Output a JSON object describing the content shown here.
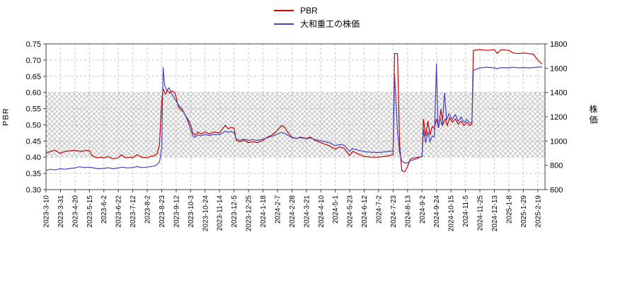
{
  "legend": [
    {
      "label": "PBR",
      "color": "#cc0000"
    },
    {
      "label": "大和重工の株価",
      "color": "#4444c8"
    }
  ],
  "axes": {
    "left": {
      "label": "PBR",
      "ticks": [
        0.3,
        0.35,
        0.4,
        0.45,
        0.5,
        0.55,
        0.6,
        0.65,
        0.7,
        0.75
      ]
    },
    "right": {
      "label": "株価",
      "ticks": [
        600,
        800,
        1000,
        1200,
        1400,
        1600,
        1800
      ]
    }
  },
  "colors": {
    "grid": "#c8c8c8",
    "hatch": "#c0c0c0",
    "frame": "#444444",
    "pbr_line": "#cc0000",
    "price_line": "#4444c8"
  },
  "chart_data": {
    "type": "line",
    "title": "",
    "grid": true,
    "legend_position": "top-center",
    "x_tick_labels": [
      "2023-3-10",
      "2023-3-31",
      "2023-4-20",
      "2023-5-15",
      "2023-6-2",
      "2023-6-22",
      "2023-7-12",
      "2023-8-2",
      "2023-8-23",
      "2023-9-12",
      "2023-10-3",
      "2023-10-24",
      "2023-11-14",
      "2023-12-5",
      "2023-12-25",
      "2024-1-18",
      "2024-2-7",
      "2024-2-28",
      "2024-3-21",
      "2024-4-10",
      "2024-5-1",
      "2024-5-23",
      "2024-6-12",
      "2024-7-2",
      "2024-7-23",
      "2024-8-13",
      "2024-9-2",
      "2024-9-24",
      "2024-10-15",
      "2024-11-5",
      "2024-11-25",
      "2024-12-13",
      "2025-1-8",
      "2025-1-29",
      "2025-2-19"
    ],
    "x_range": [
      0,
      34.5
    ],
    "left_ylim": [
      0.3,
      0.75
    ],
    "right_ylim": [
      600,
      1800
    ],
    "band_left_axis": [
      0.4,
      0.6
    ],
    "series": [
      {
        "name": "PBR",
        "key": "pbr-line",
        "axis": "left",
        "color": "#cc0000",
        "points": [
          [
            0,
            0.412
          ],
          [
            0.3,
            0.418
          ],
          [
            0.6,
            0.421
          ],
          [
            1,
            0.412
          ],
          [
            1.3,
            0.418
          ],
          [
            1.7,
            0.42
          ],
          [
            2,
            0.421
          ],
          [
            2.4,
            0.418
          ],
          [
            2.8,
            0.421
          ],
          [
            3,
            0.42
          ],
          [
            3.2,
            0.405
          ],
          [
            3.5,
            0.398
          ],
          [
            3.8,
            0.4
          ],
          [
            4,
            0.398
          ],
          [
            4.3,
            0.402
          ],
          [
            4.6,
            0.395
          ],
          [
            5,
            0.398
          ],
          [
            5.2,
            0.408
          ],
          [
            5.5,
            0.398
          ],
          [
            5.8,
            0.4
          ],
          [
            6,
            0.398
          ],
          [
            6.3,
            0.408
          ],
          [
            6.6,
            0.4
          ],
          [
            7,
            0.398
          ],
          [
            7.2,
            0.402
          ],
          [
            7.5,
            0.405
          ],
          [
            7.7,
            0.412
          ],
          [
            7.85,
            0.44
          ],
          [
            8,
            0.575
          ],
          [
            8.1,
            0.612
          ],
          [
            8.25,
            0.595
          ],
          [
            8.4,
            0.605
          ],
          [
            8.55,
            0.598
          ],
          [
            8.7,
            0.605
          ],
          [
            8.9,
            0.6
          ],
          [
            9,
            0.585
          ],
          [
            9.15,
            0.555
          ],
          [
            9.3,
            0.548
          ],
          [
            9.5,
            0.54
          ],
          [
            9.7,
            0.525
          ],
          [
            9.9,
            0.51
          ],
          [
            10,
            0.5
          ],
          [
            10.15,
            0.475
          ],
          [
            10.3,
            0.468
          ],
          [
            10.5,
            0.478
          ],
          [
            10.7,
            0.472
          ],
          [
            11,
            0.478
          ],
          [
            11.3,
            0.472
          ],
          [
            11.6,
            0.478
          ],
          [
            12,
            0.475
          ],
          [
            12.2,
            0.488
          ],
          [
            12.4,
            0.498
          ],
          [
            12.6,
            0.488
          ],
          [
            12.8,
            0.492
          ],
          [
            13,
            0.49
          ],
          [
            13.15,
            0.452
          ],
          [
            13.4,
            0.448
          ],
          [
            13.7,
            0.452
          ],
          [
            14,
            0.445
          ],
          [
            14.3,
            0.448
          ],
          [
            14.6,
            0.445
          ],
          [
            15,
            0.452
          ],
          [
            15.3,
            0.462
          ],
          [
            15.6,
            0.468
          ],
          [
            15.9,
            0.478
          ],
          [
            16.1,
            0.488
          ],
          [
            16.3,
            0.498
          ],
          [
            16.5,
            0.492
          ],
          [
            16.7,
            0.478
          ],
          [
            17,
            0.462
          ],
          [
            17.3,
            0.458
          ],
          [
            17.6,
            0.462
          ],
          [
            18,
            0.458
          ],
          [
            18.3,
            0.462
          ],
          [
            18.6,
            0.452
          ],
          [
            19,
            0.445
          ],
          [
            19.3,
            0.44
          ],
          [
            19.6,
            0.435
          ],
          [
            20,
            0.425
          ],
          [
            20.3,
            0.432
          ],
          [
            20.6,
            0.428
          ],
          [
            21,
            0.405
          ],
          [
            21.2,
            0.418
          ],
          [
            21.5,
            0.412
          ],
          [
            22,
            0.402
          ],
          [
            22.5,
            0.4
          ],
          [
            23,
            0.4
          ],
          [
            23.5,
            0.403
          ],
          [
            24,
            0.408
          ],
          [
            24.1,
            0.72
          ],
          [
            24.3,
            0.72
          ],
          [
            24.45,
            0.44
          ],
          [
            24.6,
            0.358
          ],
          [
            24.8,
            0.355
          ],
          [
            25,
            0.372
          ],
          [
            25.2,
            0.395
          ],
          [
            25.5,
            0.398
          ],
          [
            25.8,
            0.4
          ],
          [
            26,
            0.402
          ],
          [
            26.1,
            0.518
          ],
          [
            26.25,
            0.465
          ],
          [
            26.4,
            0.512
          ],
          [
            26.55,
            0.468
          ],
          [
            26.7,
            0.495
          ],
          [
            26.85,
            0.488
          ],
          [
            27,
            0.518
          ],
          [
            27.15,
            0.492
          ],
          [
            27.3,
            0.548
          ],
          [
            27.45,
            0.502
          ],
          [
            27.6,
            0.518
          ],
          [
            27.75,
            0.498
          ],
          [
            27.9,
            0.522
          ],
          [
            28.1,
            0.508
          ],
          [
            28.3,
            0.518
          ],
          [
            28.5,
            0.502
          ],
          [
            28.7,
            0.512
          ],
          [
            28.9,
            0.498
          ],
          [
            29.1,
            0.508
          ],
          [
            29.3,
            0.498
          ],
          [
            29.45,
            0.502
          ],
          [
            29.55,
            0.73
          ],
          [
            30,
            0.732
          ],
          [
            30.5,
            0.73
          ],
          [
            31,
            0.732
          ],
          [
            31.2,
            0.72
          ],
          [
            31.45,
            0.732
          ],
          [
            32,
            0.73
          ],
          [
            32.3,
            0.722
          ],
          [
            32.7,
            0.72
          ],
          [
            33,
            0.722
          ],
          [
            33.4,
            0.72
          ],
          [
            33.7,
            0.718
          ],
          [
            34,
            0.7
          ],
          [
            34.3,
            0.688
          ]
        ]
      },
      {
        "name": "大和重工の株価",
        "key": "stock-price-line",
        "axis": "right",
        "color": "#4444c8",
        "points": [
          [
            0,
            758
          ],
          [
            0.3,
            768
          ],
          [
            0.6,
            762
          ],
          [
            1,
            772
          ],
          [
            1.3,
            768
          ],
          [
            1.7,
            775
          ],
          [
            2,
            778
          ],
          [
            2.3,
            788
          ],
          [
            2.6,
            782
          ],
          [
            3,
            785
          ],
          [
            3.3,
            778
          ],
          [
            3.6,
            772
          ],
          [
            4,
            775
          ],
          [
            4.3,
            780
          ],
          [
            4.6,
            772
          ],
          [
            5,
            778
          ],
          [
            5.3,
            785
          ],
          [
            5.6,
            778
          ],
          [
            6,
            782
          ],
          [
            6.3,
            790
          ],
          [
            6.6,
            782
          ],
          [
            7,
            785
          ],
          [
            7.3,
            790
          ],
          [
            7.6,
            798
          ],
          [
            7.85,
            828
          ],
          [
            8,
            940
          ],
          [
            8.1,
            1608
          ],
          [
            8.2,
            1460
          ],
          [
            8.35,
            1415
          ],
          [
            8.5,
            1438
          ],
          [
            8.65,
            1395
          ],
          [
            8.8,
            1368
          ],
          [
            9,
            1330
          ],
          [
            9.2,
            1288
          ],
          [
            9.4,
            1265
          ],
          [
            9.6,
            1218
          ],
          [
            9.8,
            1165
          ],
          [
            10,
            1092
          ],
          [
            10.15,
            1042
          ],
          [
            10.3,
            1028
          ],
          [
            10.5,
            1052
          ],
          [
            10.7,
            1042
          ],
          [
            11,
            1055
          ],
          [
            11.3,
            1045
          ],
          [
            11.6,
            1055
          ],
          [
            12,
            1052
          ],
          [
            12.2,
            1068
          ],
          [
            12.4,
            1082
          ],
          [
            12.6,
            1072
          ],
          [
            12.8,
            1078
          ],
          [
            13,
            1072
          ],
          [
            13.15,
            1015
          ],
          [
            13.4,
            1008
          ],
          [
            13.7,
            1015
          ],
          [
            14,
            1005
          ],
          [
            14.3,
            1012
          ],
          [
            14.6,
            1005
          ],
          [
            15,
            1015
          ],
          [
            15.3,
            1028
          ],
          [
            15.6,
            1038
          ],
          [
            15.9,
            1052
          ],
          [
            16.1,
            1062
          ],
          [
            16.3,
            1072
          ],
          [
            16.5,
            1062
          ],
          [
            16.7,
            1048
          ],
          [
            17,
            1028
          ],
          [
            17.3,
            1022
          ],
          [
            17.6,
            1028
          ],
          [
            18,
            1018
          ],
          [
            18.3,
            1025
          ],
          [
            18.6,
            1012
          ],
          [
            19,
            1002
          ],
          [
            19.3,
            995
          ],
          [
            19.6,
            985
          ],
          [
            20,
            962
          ],
          [
            20.3,
            972
          ],
          [
            20.6,
            965
          ],
          [
            21,
            915
          ],
          [
            21.2,
            938
          ],
          [
            21.5,
            928
          ],
          [
            22,
            912
          ],
          [
            22.5,
            908
          ],
          [
            23,
            905
          ],
          [
            23.5,
            912
          ],
          [
            24,
            918
          ],
          [
            24.1,
            1555
          ],
          [
            24.3,
            1080
          ],
          [
            24.45,
            905
          ],
          [
            24.6,
            838
          ],
          [
            24.8,
            818
          ],
          [
            25,
            822
          ],
          [
            25.2,
            838
          ],
          [
            25.5,
            848
          ],
          [
            25.8,
            862
          ],
          [
            26,
            878
          ],
          [
            26.1,
            1095
          ],
          [
            26.25,
            985
          ],
          [
            26.4,
            1078
          ],
          [
            26.55,
            992
          ],
          [
            26.7,
            1042
          ],
          [
            26.85,
            1032
          ],
          [
            27,
            1638
          ],
          [
            27.1,
            1108
          ],
          [
            27.25,
            1185
          ],
          [
            27.4,
            1125
          ],
          [
            27.55,
            1398
          ],
          [
            27.7,
            1172
          ],
          [
            27.85,
            1225
          ],
          [
            28.1,
            1178
          ],
          [
            28.3,
            1218
          ],
          [
            28.5,
            1162
          ],
          [
            28.7,
            1198
          ],
          [
            28.9,
            1152
          ],
          [
            29.1,
            1178
          ],
          [
            29.3,
            1148
          ],
          [
            29.45,
            1158
          ],
          [
            29.55,
            1582
          ],
          [
            30,
            1602
          ],
          [
            30.5,
            1608
          ],
          [
            31,
            1602
          ],
          [
            31.2,
            1595
          ],
          [
            31.45,
            1605
          ],
          [
            32,
            1602
          ],
          [
            32.3,
            1608
          ],
          [
            32.7,
            1602
          ],
          [
            33,
            1605
          ],
          [
            33.4,
            1602
          ],
          [
            33.7,
            1605
          ],
          [
            34,
            1608
          ],
          [
            34.3,
            1610
          ]
        ]
      }
    ]
  }
}
